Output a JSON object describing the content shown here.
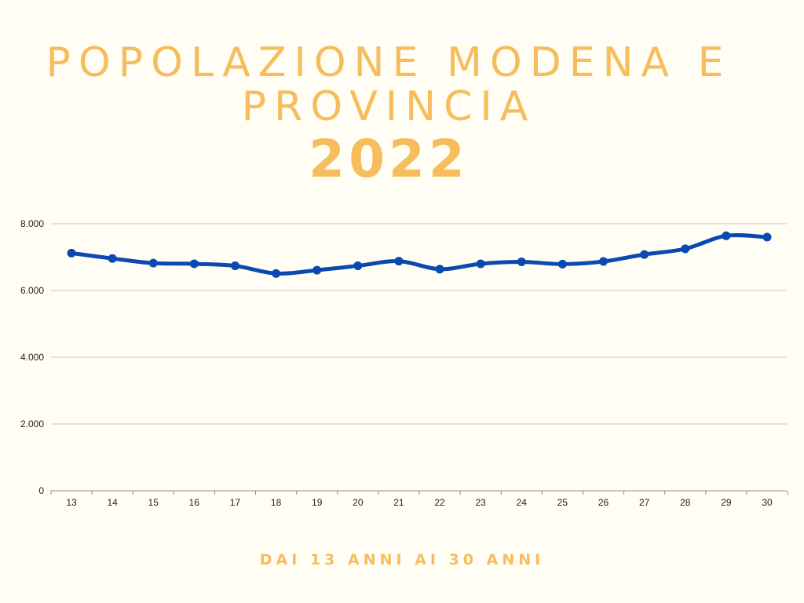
{
  "header": {
    "title": "POPOLAZIONE MODENA E PROVINCIA",
    "year": "2022"
  },
  "footer": {
    "subtitle": "DAI 13 ANNI AI 30 ANNI"
  },
  "colors": {
    "title": "#f6bd5c",
    "line": "#0a49b0",
    "grid": "#c8c8c8",
    "background": "#fffdf4"
  },
  "chart_data": {
    "type": "line",
    "categories": [
      "13",
      "14",
      "15",
      "16",
      "17",
      "18",
      "19",
      "20",
      "21",
      "22",
      "23",
      "24",
      "25",
      "26",
      "27",
      "28",
      "29",
      "30"
    ],
    "series": [
      {
        "values": [
          7120,
          6960,
          6820,
          6800,
          6740,
          6510,
          6610,
          6740,
          6880,
          6640,
          6800,
          6860,
          6790,
          6870,
          7080,
          7250,
          7640,
          7600
        ]
      }
    ],
    "ylim": [
      0,
      8000
    ],
    "yticks": [
      0,
      2000,
      4000,
      6000,
      8000
    ],
    "ytick_labels": [
      "0",
      "2.000",
      "4.000",
      "6.000",
      "8.000"
    ],
    "grid": true,
    "smooth": true
  }
}
